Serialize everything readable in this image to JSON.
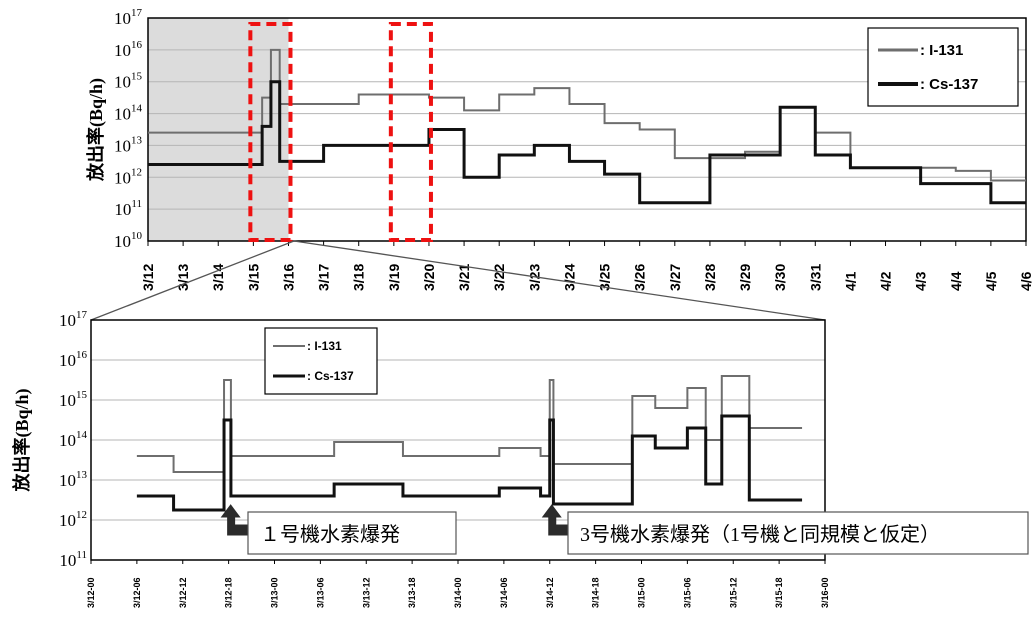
{
  "chart_data": [
    {
      "type": "line",
      "step": true,
      "ylabel": "放出率(Bq/h)",
      "yscale": "log",
      "ylim": [
        10,
        17
      ],
      "yticks": [
        {
          "base": "10",
          "exp": "10"
        },
        {
          "base": "10",
          "exp": "11"
        },
        {
          "base": "10",
          "exp": "12"
        },
        {
          "base": "10",
          "exp": "13"
        },
        {
          "base": "10",
          "exp": "14"
        },
        {
          "base": "10",
          "exp": "15"
        },
        {
          "base": "10",
          "exp": "16"
        },
        {
          "base": "10",
          "exp": "17"
        }
      ],
      "categories": [
        "3/12",
        "3/13",
        "3/14",
        "3/15",
        "3/16",
        "3/17",
        "3/18",
        "3/19",
        "3/20",
        "3/21",
        "3/22",
        "3/23",
        "3/24",
        "3/25",
        "3/26",
        "3/27",
        "3/28",
        "3/29",
        "3/30",
        "3/31",
        "4/1",
        "4/2",
        "4/3",
        "4/4",
        "4/5",
        "4/6"
      ],
      "grid": true,
      "legend_position": "top-right",
      "shaded_range": [
        "3/12",
        "3/16"
      ],
      "highlight_boxes": [
        [
          "3/15",
          "3/16"
        ],
        [
          "3/19",
          "3/20"
        ]
      ],
      "series": [
        {
          "name": ": I-131",
          "color": "#6e6e6e",
          "width": 2,
          "points": [
            [
              "3/12",
              13.4
            ],
            [
              "3/15",
              13.4
            ],
            [
              "3/15 06:00",
              14.5
            ],
            [
              "3/15 12:00",
              16.0
            ],
            [
              "3/15 18:00",
              14.3
            ],
            [
              "3/17",
              14.3
            ],
            [
              "3/18",
              14.6
            ],
            [
              "3/20",
              14.5
            ],
            [
              "3/21",
              14.1
            ],
            [
              "3/22",
              14.6
            ],
            [
              "3/23",
              14.8
            ],
            [
              "3/24",
              14.3
            ],
            [
              "3/25",
              13.7
            ],
            [
              "3/26",
              13.5
            ],
            [
              "3/27",
              12.6
            ],
            [
              "3/29",
              12.8
            ],
            [
              "3/30",
              14.2
            ],
            [
              "3/31",
              13.4
            ],
            [
              "4/1",
              12.3
            ],
            [
              "4/4",
              12.2
            ],
            [
              "4/5",
              11.9
            ],
            [
              "4/6",
              11.9
            ]
          ]
        },
        {
          "name": ": Cs-137",
          "color": "#111111",
          "width": 3,
          "points": [
            [
              "3/12",
              12.4
            ],
            [
              "3/15",
              12.4
            ],
            [
              "3/15 06:00",
              13.6
            ],
            [
              "3/15 12:00",
              15.0
            ],
            [
              "3/15 18:00",
              12.5
            ],
            [
              "3/17",
              13.0
            ],
            [
              "3/19",
              13.0
            ],
            [
              "3/20",
              13.5
            ],
            [
              "3/21",
              12.0
            ],
            [
              "3/22",
              12.7
            ],
            [
              "3/23",
              13.0
            ],
            [
              "3/24",
              12.5
            ],
            [
              "3/25",
              12.1
            ],
            [
              "3/26",
              11.2
            ],
            [
              "3/28",
              12.7
            ],
            [
              "3/30",
              14.2
            ],
            [
              "3/31",
              12.7
            ],
            [
              "4/1",
              12.3
            ],
            [
              "4/3",
              11.8
            ],
            [
              "4/5",
              11.2
            ],
            [
              "4/6",
              11.2
            ]
          ]
        }
      ]
    },
    {
      "type": "line",
      "step": true,
      "ylabel": "放出率(Bq/h)",
      "yscale": "log",
      "ylim": [
        11,
        17
      ],
      "yticks": [
        {
          "base": "10",
          "exp": "11"
        },
        {
          "base": "10",
          "exp": "12"
        },
        {
          "base": "10",
          "exp": "13"
        },
        {
          "base": "10",
          "exp": "14"
        },
        {
          "base": "10",
          "exp": "15"
        },
        {
          "base": "10",
          "exp": "16"
        },
        {
          "base": "10",
          "exp": "17"
        }
      ],
      "categories": [
        "3/12-00",
        "3/12-06",
        "3/12-12",
        "3/12-18",
        "3/13-00",
        "3/13-06",
        "3/13-12",
        "3/13-18",
        "3/14-00",
        "3/14-06",
        "3/14-12",
        "3/14-18",
        "3/15-00",
        "3/15-06",
        "3/15-12",
        "3/15-18",
        "3/16-00"
      ],
      "grid": true,
      "legend_position": "top-left",
      "series": [
        {
          "name": ": I-131",
          "color": "#6e6e6e",
          "width": 2,
          "points": [
            [
              1,
              13.6
            ],
            [
              1.8,
              13.6
            ],
            [
              1.8,
              13.2
            ],
            [
              2.9,
              13.2
            ],
            [
              2.9,
              15.5
            ],
            [
              3.05,
              15.5
            ],
            [
              3.05,
              13.6
            ],
            [
              5.3,
              13.6
            ],
            [
              5.3,
              13.95
            ],
            [
              6.8,
              13.95
            ],
            [
              6.8,
              13.6
            ],
            [
              8.9,
              13.6
            ],
            [
              8.9,
              13.8
            ],
            [
              9.8,
              13.8
            ],
            [
              9.8,
              13.6
            ],
            [
              10.0,
              13.6
            ],
            [
              10.0,
              15.5
            ],
            [
              10.08,
              15.5
            ],
            [
              10.08,
              13.4
            ],
            [
              11.8,
              13.4
            ],
            [
              11.8,
              15.1
            ],
            [
              12.3,
              15.1
            ],
            [
              12.3,
              14.8
            ],
            [
              13.0,
              14.8
            ],
            [
              13.0,
              15.3
            ],
            [
              13.4,
              15.3
            ],
            [
              13.4,
              14.0
            ],
            [
              13.75,
              14.0
            ],
            [
              13.75,
              15.6
            ],
            [
              14.35,
              15.6
            ],
            [
              14.35,
              14.3
            ],
            [
              15.5,
              14.3
            ]
          ]
        },
        {
          "name": ": Cs-137",
          "color": "#111111",
          "width": 3,
          "points": [
            [
              1,
              12.6
            ],
            [
              1.8,
              12.6
            ],
            [
              1.8,
              12.25
            ],
            [
              2.9,
              12.25
            ],
            [
              2.9,
              14.5
            ],
            [
              3.05,
              14.5
            ],
            [
              3.05,
              12.6
            ],
            [
              5.3,
              12.6
            ],
            [
              5.3,
              12.9
            ],
            [
              6.8,
              12.9
            ],
            [
              6.8,
              12.6
            ],
            [
              8.9,
              12.6
            ],
            [
              8.9,
              12.8
            ],
            [
              9.8,
              12.8
            ],
            [
              9.8,
              12.6
            ],
            [
              10.0,
              12.6
            ],
            [
              10.0,
              14.5
            ],
            [
              10.08,
              14.5
            ],
            [
              10.08,
              12.4
            ],
            [
              11.8,
              12.4
            ],
            [
              11.8,
              14.1
            ],
            [
              12.3,
              14.1
            ],
            [
              12.3,
              13.8
            ],
            [
              13.0,
              13.8
            ],
            [
              13.0,
              14.3
            ],
            [
              13.4,
              14.3
            ],
            [
              13.4,
              12.9
            ],
            [
              13.75,
              12.9
            ],
            [
              13.75,
              14.6
            ],
            [
              14.35,
              14.6
            ],
            [
              14.35,
              12.5
            ],
            [
              15.5,
              12.5
            ]
          ]
        }
      ],
      "annotations": [
        {
          "text": "１号機水素爆発",
          "category_index": 3
        },
        {
          "text": "3号機水素爆発（1号機と同規模と仮定）",
          "category_index": 10
        }
      ]
    }
  ]
}
